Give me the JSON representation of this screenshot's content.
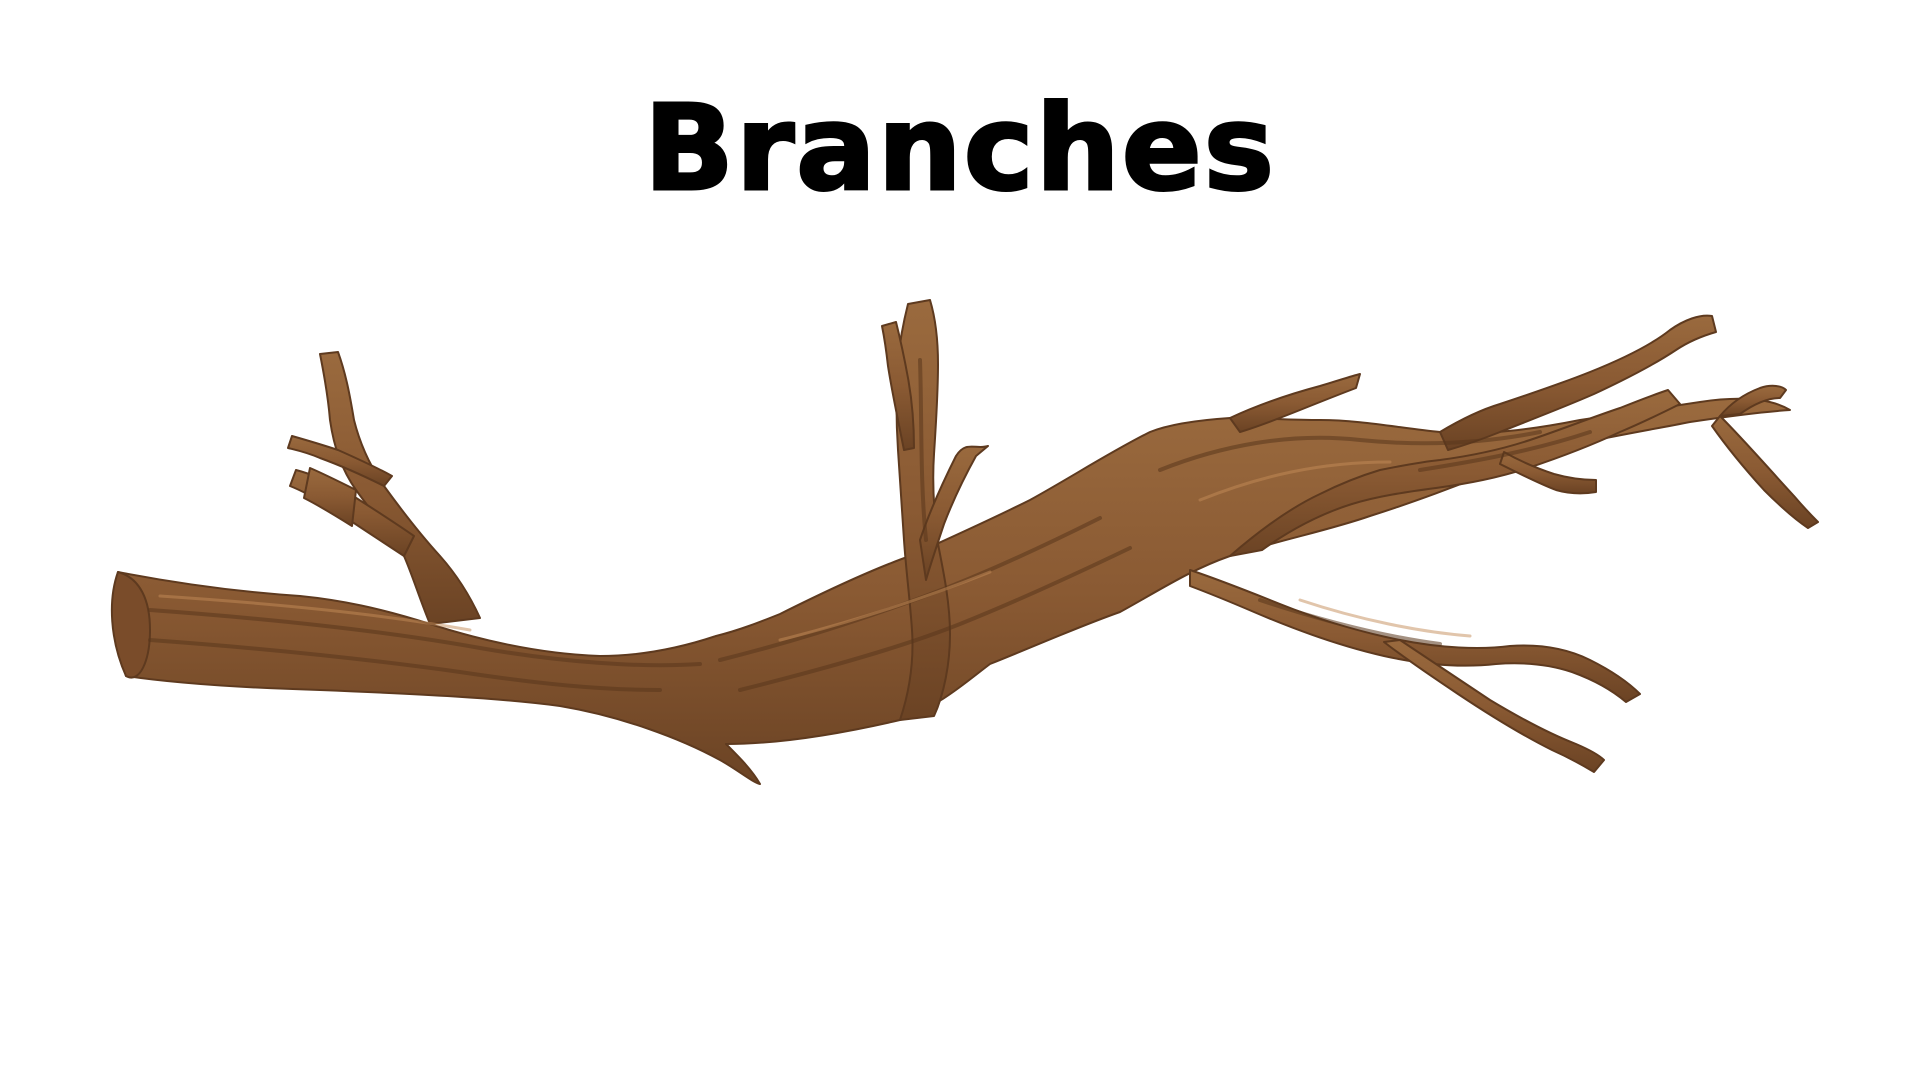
{
  "slide": {
    "title": "Branches"
  },
  "illustration": {
    "subject": "branch-illustration",
    "colors": {
      "bark_dark": "#6b4324",
      "bark_mid": "#8a5a33",
      "bark_light": "#b07a4a",
      "text": "#000000",
      "background": "#ffffff"
    }
  }
}
